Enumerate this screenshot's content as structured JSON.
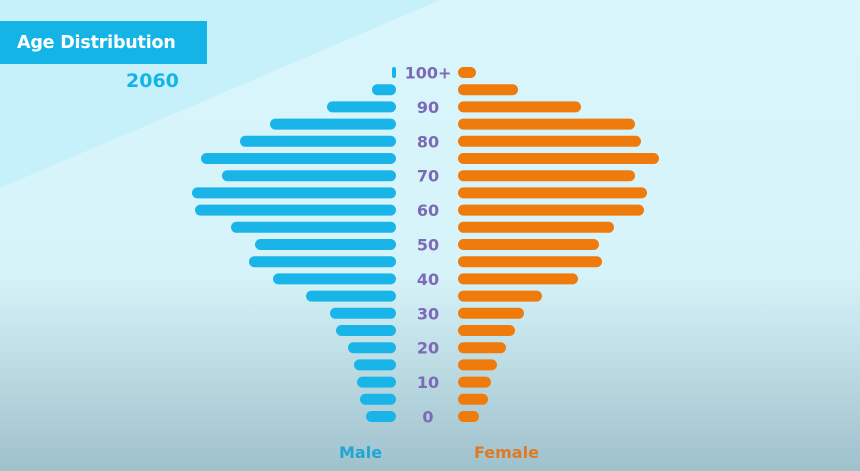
{
  "header": {
    "title": "Age Distribution",
    "year": "2060"
  },
  "colors": {
    "male": "#19b5e9",
    "female": "#ee7b0b",
    "tick_label": "#7c6ab7",
    "title_bg": "#15b4e7"
  },
  "chart_data": {
    "type": "bar",
    "orientation": "horizontal-butterfly",
    "title": "Age Distribution",
    "subtitle": "2060",
    "categories": [
      "100+",
      "95",
      "90",
      "85",
      "80",
      "75",
      "70",
      "65",
      "60",
      "55",
      "50",
      "45",
      "40",
      "35",
      "30",
      "25",
      "20",
      "15",
      "10",
      "5",
      "0"
    ],
    "tick_labels": [
      "100+",
      "90",
      "80",
      "70",
      "60",
      "50",
      "40",
      "30",
      "20",
      "10",
      "0"
    ],
    "series": [
      {
        "name": "Male",
        "values": [
          1,
          8,
          23,
          42,
          52,
          65,
          58,
          68,
          67,
          55,
          47,
          49,
          41,
          30,
          22,
          20,
          16,
          14,
          13,
          12,
          10
        ]
      },
      {
        "name": "Female",
        "values": [
          6,
          20,
          41,
          59,
          61,
          67,
          59,
          63,
          62,
          52,
          47,
          48,
          40,
          28,
          22,
          19,
          16,
          13,
          11,
          10,
          7
        ]
      }
    ],
    "legend": {
      "position": "bottom",
      "labels": [
        "Male",
        "Female"
      ]
    }
  }
}
